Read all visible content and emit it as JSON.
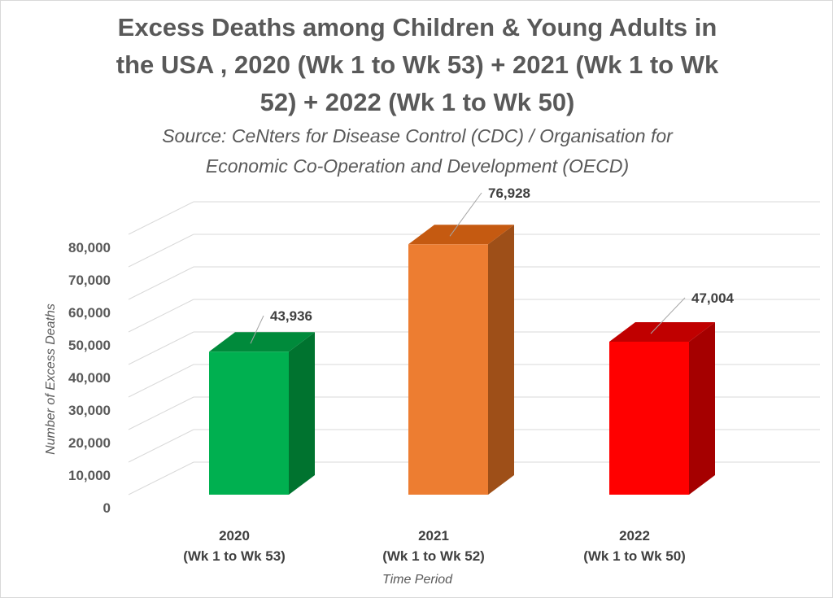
{
  "chart_data": {
    "type": "bar",
    "title": "Excess Deaths among Children & Young Adults in the USA , 2020 (Wk 1 to Wk 53) + 2021 (Wk 1 to Wk 52) + 2022 (Wk 1 to Wk 50)",
    "title_lines": [
      "Excess Deaths among Children & Young Adults in",
      "the USA , 2020 (Wk 1 to Wk 53) + 2021 (Wk 1 to Wk",
      "52) + 2022 (Wk 1 to Wk 50)"
    ],
    "subtitle_lines": [
      "Source: CeNters for Disease Control (CDC) / Organisation for",
      "Economic Co-Operation and Development (OECD)"
    ],
    "categories": [
      [
        "2020",
        "(Wk 1 to Wk 53)"
      ],
      [
        "2021",
        "(Wk 1 to Wk 52)"
      ],
      [
        "2022",
        "(Wk 1 to Wk 50)"
      ]
    ],
    "values": [
      43936,
      76928,
      47004
    ],
    "data_labels": [
      "43,936",
      "76,928",
      "47,004"
    ],
    "colors": [
      {
        "front": "#00b050",
        "side": "#00732f",
        "top": "#008a3b"
      },
      {
        "front": "#ed7d31",
        "side": "#9e4f18",
        "top": "#c55a11"
      },
      {
        "front": "#ff0000",
        "side": "#a50000",
        "top": "#c00000"
      }
    ],
    "ylim": [
      0,
      80000
    ],
    "yticks": [
      0,
      10000,
      20000,
      30000,
      40000,
      50000,
      60000,
      70000,
      80000
    ],
    "ytick_labels": [
      "0",
      "10,000",
      "20,000",
      "30,000",
      "40,000",
      "50,000",
      "60,000",
      "70,000",
      "80,000"
    ],
    "xlabel": "Time Period",
    "ylabel": "Number of Excess Deaths",
    "grid": true,
    "style": "3d-bar"
  }
}
